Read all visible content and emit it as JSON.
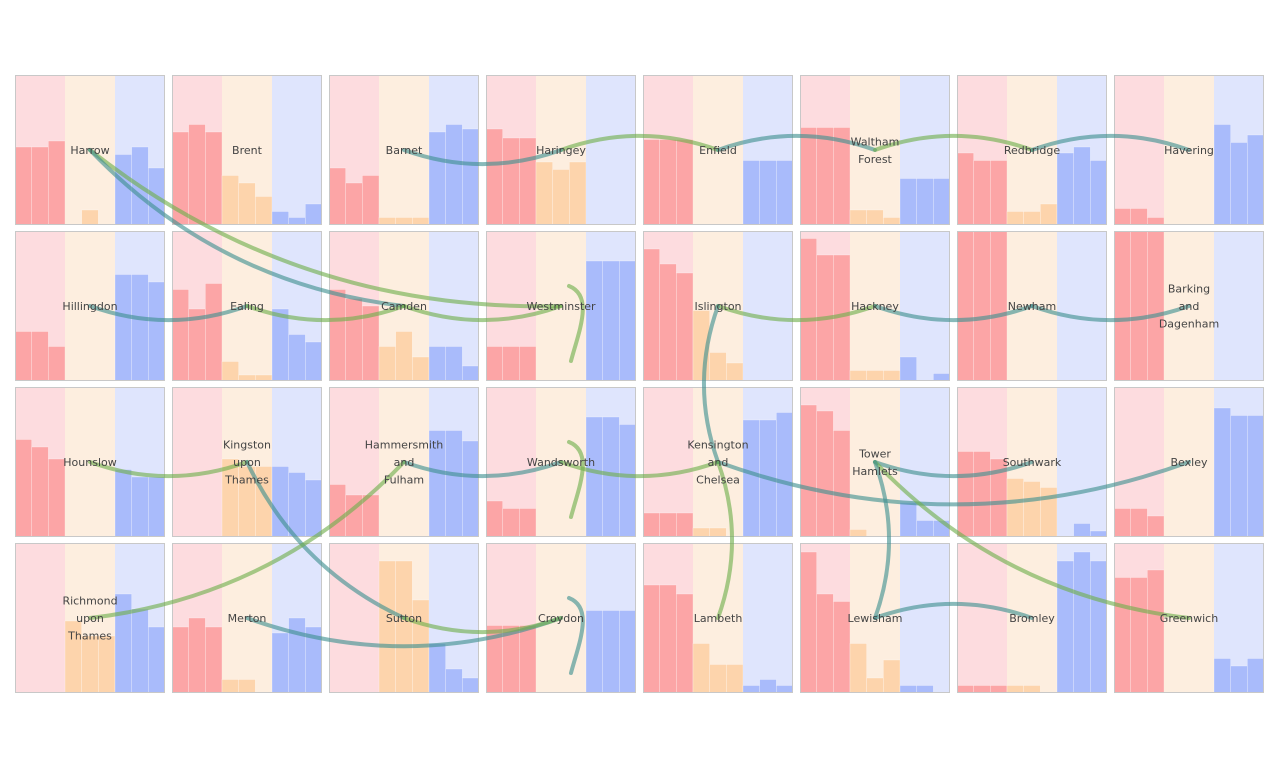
{
  "chart_data": {
    "type": "bar",
    "bands": [
      "red",
      "orange",
      "blue"
    ],
    "colors": {
      "red_bg": "#fddcdf",
      "red_bar": "#fca5a6",
      "orange_bg": "#fdeedf",
      "orange_bar": "#fdd4ac",
      "blue_bg": "#dfe5fd",
      "blue_bar": "#a9bbfb",
      "border": "#c8c8c8",
      "flow_green": "#6fae4c",
      "flow_blue": "#3f8f8f"
    },
    "ylim": [
      0,
      100
    ],
    "cells": [
      {
        "name": "Harrow",
        "row": 0,
        "col": 0,
        "red": [
          52,
          52,
          56
        ],
        "orange": [
          0,
          10,
          0
        ],
        "blue": [
          47,
          52,
          38
        ]
      },
      {
        "name": "Brent",
        "row": 0,
        "col": 1,
        "red": [
          62,
          67,
          62
        ],
        "orange": [
          33,
          28,
          19
        ],
        "blue": [
          9,
          5,
          14
        ]
      },
      {
        "name": "Barnet",
        "row": 0,
        "col": 2,
        "red": [
          38,
          28,
          33
        ],
        "orange": [
          5,
          5,
          5
        ],
        "blue": [
          62,
          67,
          64
        ]
      },
      {
        "name": "Haringey",
        "row": 0,
        "col": 3,
        "red": [
          64,
          58,
          58
        ],
        "orange": [
          42,
          37,
          42
        ],
        "blue": [
          0,
          0,
          0
        ]
      },
      {
        "name": "Enfield",
        "row": 0,
        "col": 4,
        "red": [
          57,
          57,
          57
        ],
        "orange": [
          0,
          0,
          0
        ],
        "blue": [
          43,
          43,
          43
        ]
      },
      {
        "name": "Waltham Forest",
        "row": 0,
        "col": 5,
        "red": [
          65,
          65,
          65
        ],
        "orange": [
          10,
          10,
          5
        ],
        "blue": [
          31,
          31,
          31
        ]
      },
      {
        "name": "Redbridge",
        "row": 0,
        "col": 6,
        "red": [
          48,
          43,
          43
        ],
        "orange": [
          9,
          9,
          14
        ],
        "blue": [
          48,
          52,
          43
        ]
      },
      {
        "name": "Havering",
        "row": 0,
        "col": 7,
        "red": [
          11,
          11,
          5
        ],
        "orange": [
          0,
          0,
          0
        ],
        "blue": [
          67,
          55,
          60
        ]
      },
      {
        "name": "Hillingdon",
        "row": 1,
        "col": 0,
        "red": [
          33,
          33,
          23
        ],
        "orange": [
          0,
          0,
          0
        ],
        "blue": [
          71,
          71,
          66
        ]
      },
      {
        "name": "Ealing",
        "row": 1,
        "col": 1,
        "red": [
          61,
          48,
          65
        ],
        "orange": [
          13,
          4,
          4
        ],
        "blue": [
          48,
          31,
          26
        ]
      },
      {
        "name": "Camden",
        "row": 1,
        "col": 2,
        "red": [
          61,
          55,
          50
        ],
        "orange": [
          23,
          33,
          16
        ],
        "blue": [
          23,
          23,
          10
        ]
      },
      {
        "name": "Westminster",
        "row": 1,
        "col": 3,
        "red": [
          23,
          23,
          23
        ],
        "orange": [
          0,
          0,
          0
        ],
        "blue": [
          80,
          80,
          80
        ]
      },
      {
        "name": "Islington",
        "row": 1,
        "col": 4,
        "red": [
          88,
          78,
          72
        ],
        "orange": [
          47,
          19,
          12
        ],
        "blue": [
          0,
          0,
          0
        ]
      },
      {
        "name": "Hackney",
        "row": 1,
        "col": 5,
        "red": [
          95,
          84,
          84
        ],
        "orange": [
          7,
          7,
          7
        ],
        "blue": [
          16,
          0,
          5
        ]
      },
      {
        "name": "Newham",
        "row": 1,
        "col": 6,
        "red": [
          100,
          100,
          100
        ],
        "orange": [
          0,
          0,
          0
        ],
        "blue": [
          0,
          0,
          0
        ]
      },
      {
        "name": "Barking and Dagenham",
        "row": 1,
        "col": 7,
        "red": [
          100,
          100,
          100
        ],
        "orange": [
          0,
          0,
          0
        ],
        "blue": [
          0,
          0,
          0
        ]
      },
      {
        "name": "Hounslow",
        "row": 2,
        "col": 0,
        "red": [
          65,
          60,
          52
        ],
        "orange": [
          0,
          0,
          0
        ],
        "blue": [
          45,
          40,
          40
        ]
      },
      {
        "name": "Kingston upon Thames",
        "row": 2,
        "col": 1,
        "red": [
          0,
          0,
          0
        ],
        "orange": [
          52,
          47,
          47
        ],
        "blue": [
          47,
          43,
          38
        ]
      },
      {
        "name": "Hammersmith and Fulham",
        "row": 2,
        "col": 2,
        "red": [
          35,
          28,
          28
        ],
        "orange": [
          0,
          0,
          0
        ],
        "blue": [
          71,
          71,
          64
        ]
      },
      {
        "name": "Wandsworth",
        "row": 2,
        "col": 3,
        "red": [
          24,
          19,
          19
        ],
        "orange": [
          0,
          0,
          0
        ],
        "blue": [
          80,
          80,
          75
        ]
      },
      {
        "name": "Kensington and Chelsea",
        "row": 2,
        "col": 4,
        "red": [
          16,
          16,
          16
        ],
        "orange": [
          6,
          6,
          0
        ],
        "blue": [
          78,
          78,
          83
        ]
      },
      {
        "name": "Tower Hamlets",
        "row": 2,
        "col": 5,
        "red": [
          88,
          84,
          71
        ],
        "orange": [
          5,
          0,
          0
        ],
        "blue": [
          23,
          11,
          11
        ]
      },
      {
        "name": "Southwark",
        "row": 2,
        "col": 6,
        "red": [
          57,
          57,
          52
        ],
        "orange": [
          39,
          37,
          33
        ],
        "blue": [
          0,
          9,
          4
        ]
      },
      {
        "name": "Bexley",
        "row": 2,
        "col": 7,
        "red": [
          19,
          19,
          14
        ],
        "orange": [
          0,
          0,
          0
        ],
        "blue": [
          86,
          81,
          81
        ]
      },
      {
        "name": "Richmond upon Thames",
        "row": 3,
        "col": 0,
        "red": [
          0,
          0,
          0
        ],
        "orange": [
          48,
          38,
          38
        ],
        "blue": [
          66,
          56,
          44
        ]
      },
      {
        "name": "Merton",
        "row": 3,
        "col": 1,
        "red": [
          44,
          50,
          44
        ],
        "orange": [
          9,
          9,
          0
        ],
        "blue": [
          40,
          50,
          44
        ]
      },
      {
        "name": "Sutton",
        "row": 3,
        "col": 2,
        "red": [
          0,
          0,
          0
        ],
        "orange": [
          88,
          88,
          62
        ],
        "blue": [
          33,
          16,
          10
        ]
      },
      {
        "name": "Croydon",
        "row": 3,
        "col": 3,
        "red": [
          45,
          45,
          45
        ],
        "orange": [
          0,
          0,
          0
        ],
        "blue": [
          55,
          55,
          55
        ]
      },
      {
        "name": "Lambeth",
        "row": 3,
        "col": 4,
        "red": [
          72,
          72,
          66
        ],
        "orange": [
          33,
          19,
          19
        ],
        "blue": [
          5,
          9,
          5
        ]
      },
      {
        "name": "Lewisham",
        "row": 3,
        "col": 5,
        "red": [
          94,
          66,
          61
        ],
        "orange": [
          33,
          10,
          22
        ],
        "blue": [
          5,
          5,
          0
        ]
      },
      {
        "name": "Bromley",
        "row": 3,
        "col": 6,
        "red": [
          5,
          5,
          5
        ],
        "orange": [
          5,
          5,
          0
        ],
        "blue": [
          88,
          94,
          88
        ]
      },
      {
        "name": "Greenwich",
        "row": 3,
        "col": 7,
        "red": [
          77,
          77,
          82
        ],
        "orange": [
          0,
          0,
          0
        ],
        "blue": [
          23,
          18,
          23
        ]
      }
    ],
    "flows": [
      {
        "from": "Enfield",
        "to": "Haringey",
        "color": "green"
      },
      {
        "from": "Harrow",
        "to": "Westminster",
        "color": "green"
      },
      {
        "from": "Harrow",
        "to": "Camden",
        "color": "blue"
      },
      {
        "from": "Barnet",
        "to": "Haringey",
        "color": "blue"
      },
      {
        "from": "Waltham Forest",
        "to": "Enfield",
        "color": "blue"
      },
      {
        "from": "Redbridge",
        "to": "Waltham Forest",
        "color": "green"
      },
      {
        "from": "Havering",
        "to": "Redbridge",
        "color": "blue"
      },
      {
        "from": "Hillingdon",
        "to": "Ealing",
        "color": "blue"
      },
      {
        "from": "Ealing",
        "to": "Camden",
        "color": "green"
      },
      {
        "from": "Camden",
        "to": "Westminster",
        "color": "green"
      },
      {
        "from": "Westminster",
        "to": "Westminster",
        "color": "green"
      },
      {
        "from": "Islington",
        "to": "Hackney",
        "color": "green"
      },
      {
        "from": "Islington",
        "to": "Kensington and Chelsea",
        "color": "blue"
      },
      {
        "from": "Newham",
        "to": "Barking and Dagenham",
        "color": "blue"
      },
      {
        "from": "Hackney",
        "to": "Newham",
        "color": "blue"
      },
      {
        "from": "Hounslow",
        "to": "Kingston upon Thames",
        "color": "green"
      },
      {
        "from": "Hammersmith and Fulham",
        "to": "Wandsworth",
        "color": "blue"
      },
      {
        "from": "Wandsworth",
        "to": "Kensington and Chelsea",
        "color": "green"
      },
      {
        "from": "Wandsworth",
        "to": "Wandsworth",
        "color": "green"
      },
      {
        "from": "Kensington and Chelsea",
        "to": "Bexley",
        "color": "blue"
      },
      {
        "from": "Tower Hamlets",
        "to": "Southwark",
        "color": "blue"
      },
      {
        "from": "Tower Hamlets",
        "to": "Greenwich",
        "color": "green"
      },
      {
        "from": "Kingston upon Thames",
        "to": "Sutton",
        "color": "blue"
      },
      {
        "from": "Richmond upon Thames",
        "to": "Hammersmith and Fulham",
        "color": "green"
      },
      {
        "from": "Merton",
        "to": "Croydon",
        "color": "blue"
      },
      {
        "from": "Sutton",
        "to": "Croydon",
        "color": "green"
      },
      {
        "from": "Croydon",
        "to": "Croydon",
        "color": "blue"
      },
      {
        "from": "Lambeth",
        "to": "Kensington and Chelsea",
        "color": "green"
      },
      {
        "from": "Lewisham",
        "to": "Tower Hamlets",
        "color": "blue"
      },
      {
        "from": "Bromley",
        "to": "Lewisham",
        "color": "blue"
      }
    ]
  }
}
